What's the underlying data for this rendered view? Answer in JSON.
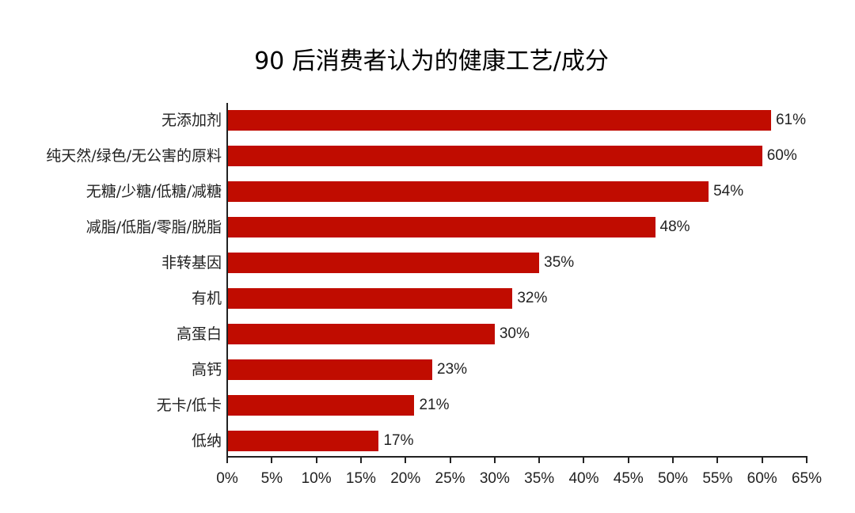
{
  "title": "90 后消费者认为的健康工艺/成分",
  "colors": {
    "bar": "#c00c00",
    "axis": "#222222"
  },
  "chart_data": {
    "type": "bar",
    "orientation": "horizontal",
    "title": "90 后消费者认为的健康工艺/成分",
    "xlabel": "",
    "ylabel": "",
    "xlim": [
      0,
      65
    ],
    "x_ticks": [
      "0%",
      "5%",
      "10%",
      "15%",
      "20%",
      "25%",
      "30%",
      "35%",
      "40%",
      "45%",
      "50%",
      "55%",
      "60%",
      "65%"
    ],
    "categories": [
      "无添加剂",
      "纯天然/绿色/无公害的原料",
      "无糖/少糖/低糖/减糖",
      "减脂/低脂/零脂/脱脂",
      "非转基因",
      "有机",
      "高蛋白",
      "高钙",
      "无卡/低卡",
      "低纳"
    ],
    "values": [
      61,
      60,
      54,
      48,
      35,
      32,
      30,
      23,
      21,
      17
    ],
    "value_labels": [
      "61%",
      "60%",
      "54%",
      "48%",
      "35%",
      "32%",
      "30%",
      "23%",
      "21%",
      "17%"
    ],
    "grid": false,
    "legend": null
  }
}
